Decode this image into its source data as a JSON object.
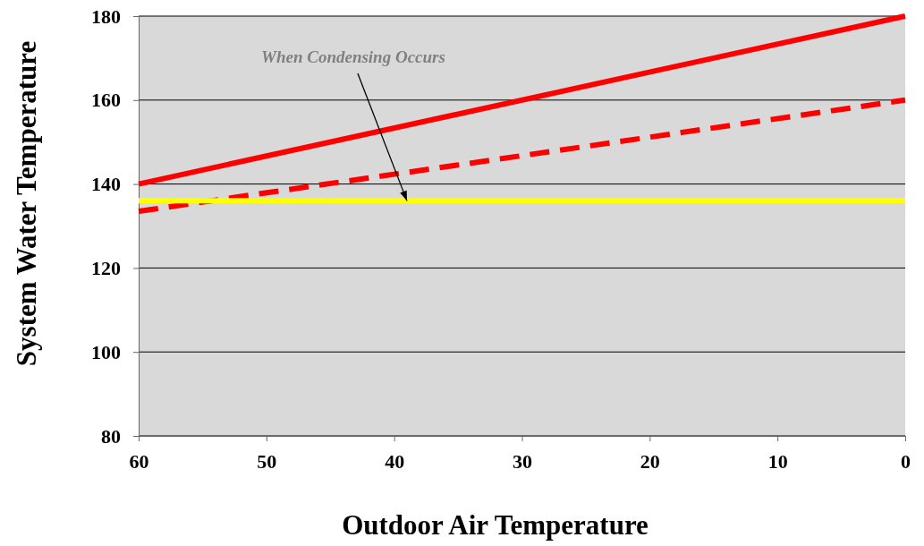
{
  "chart_data": {
    "type": "line",
    "xlabel": "Outdoor Air Temperature",
    "ylabel": "System Water Temperature",
    "xlim": [
      60,
      0
    ],
    "xticks": [
      60,
      50,
      40,
      30,
      20,
      10,
      0
    ],
    "ylim": [
      80,
      180
    ],
    "yticks": [
      80,
      100,
      120,
      140,
      160,
      180
    ],
    "grid": "y",
    "x": [
      60,
      0
    ],
    "series": [
      {
        "color": "#ff0000",
        "values": [
          140,
          180
        ],
        "line_style": "solid"
      },
      {
        "color": "#ff0000",
        "values": [
          133.5,
          160
        ],
        "line_style": "dashed"
      },
      {
        "color": "#ffff00",
        "values": [
          136,
          136
        ],
        "line_style": "solid"
      }
    ],
    "annotations": [
      {
        "text": "When Condensing Occurs",
        "x": 39,
        "y": 136
      }
    ]
  }
}
